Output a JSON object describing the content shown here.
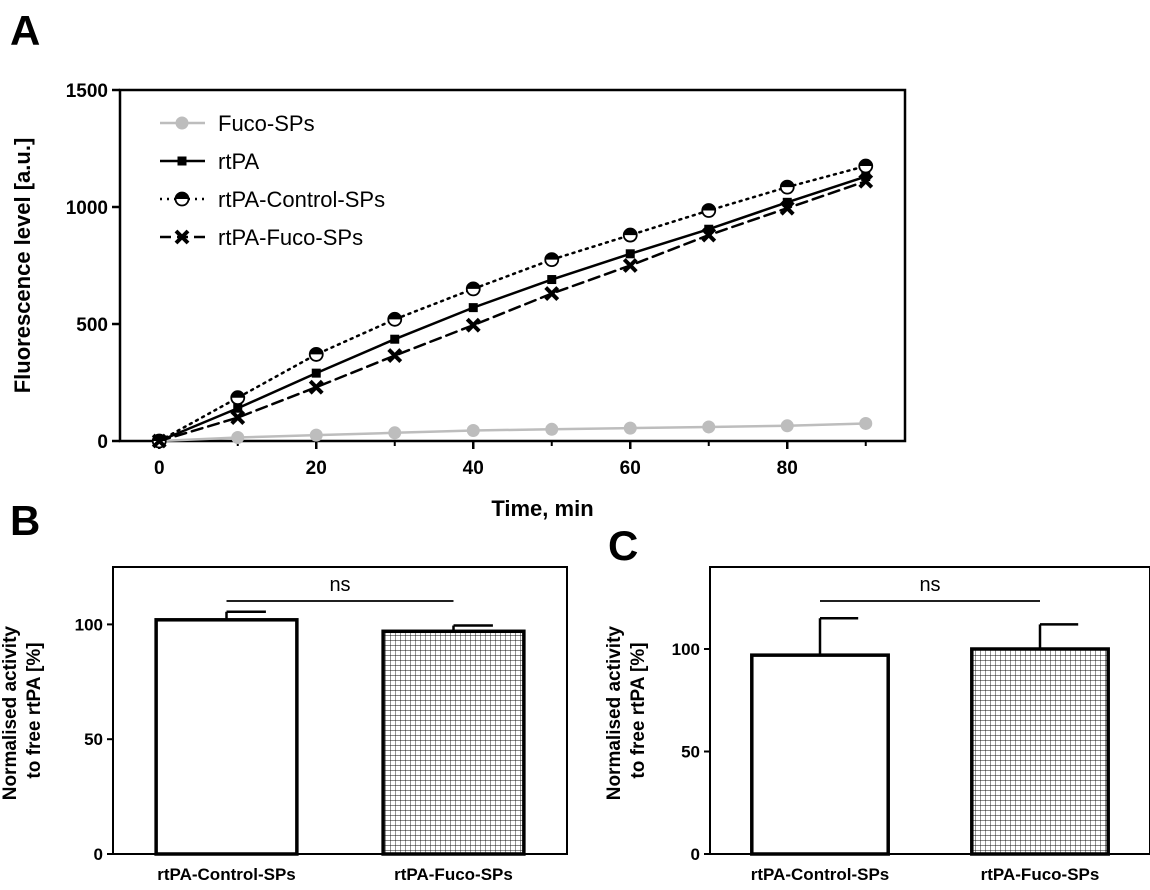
{
  "panel_labels": {
    "a": "A",
    "b": "B",
    "c": "C"
  },
  "chart_data": [
    {
      "panel": "A",
      "type": "line",
      "xlabel": "Time, min",
      "ylabel": "Fluorescence level [a.u.]",
      "xlim": [
        -5,
        95
      ],
      "ylim": [
        0,
        1500
      ],
      "x_ticks": [
        0,
        20,
        40,
        60,
        80
      ],
      "y_ticks": [
        0,
        500,
        1000,
        1500
      ],
      "legend_position": "top-left",
      "x": [
        0,
        10,
        20,
        30,
        40,
        50,
        60,
        70,
        80,
        90
      ],
      "series": [
        {
          "name": "Fuco-SPs",
          "color": "#bdbdbd",
          "marker": "filled-circle",
          "line": "solid",
          "values": [
            0,
            15,
            25,
            35,
            45,
            50,
            55,
            60,
            65,
            75
          ]
        },
        {
          "name": "rtPA",
          "color": "#000000",
          "marker": "filled-square",
          "line": "solid",
          "values": [
            0,
            140,
            290,
            435,
            570,
            690,
            800,
            905,
            1020,
            1130
          ]
        },
        {
          "name": "rtPA-Control-SPs",
          "color": "#000000",
          "marker": "half-filled-circle",
          "line": "dotted",
          "values": [
            0,
            185,
            370,
            520,
            650,
            775,
            880,
            985,
            1085,
            1175
          ]
        },
        {
          "name": "rtPA-Fuco-SPs",
          "color": "#000000",
          "marker": "cross",
          "line": "dashed",
          "values": [
            0,
            100,
            230,
            365,
            495,
            630,
            750,
            880,
            995,
            1110
          ]
        }
      ]
    },
    {
      "panel": "B",
      "type": "bar",
      "ylabel": "Normalised activity\nto free rtPA [%]",
      "ylabel_lines": [
        "Normalised activity",
        "to free rtPA [%]"
      ],
      "ylim": [
        0,
        125
      ],
      "y_ticks": [
        0,
        50,
        100
      ],
      "categories": [
        "rtPA-Control-SPs",
        "rtPA-Fuco-SPs"
      ],
      "values": [
        102,
        97
      ],
      "errors": [
        3.5,
        2.5
      ],
      "fills": [
        "white",
        "grid-hatch"
      ],
      "significance": "ns"
    },
    {
      "panel": "C",
      "type": "bar",
      "ylabel": "Normalised activity\nto free rtPA [%]",
      "ylabel_lines": [
        "Normalised activity",
        "to free rtPA [%]"
      ],
      "ylim": [
        0,
        140
      ],
      "y_ticks": [
        0,
        50,
        100
      ],
      "categories": [
        "rtPA-Control-SPs",
        "rtPA-Fuco-SPs"
      ],
      "values": [
        97,
        100
      ],
      "errors": [
        18,
        12
      ],
      "fills": [
        "white",
        "grid-hatch"
      ],
      "significance": "ns"
    }
  ]
}
